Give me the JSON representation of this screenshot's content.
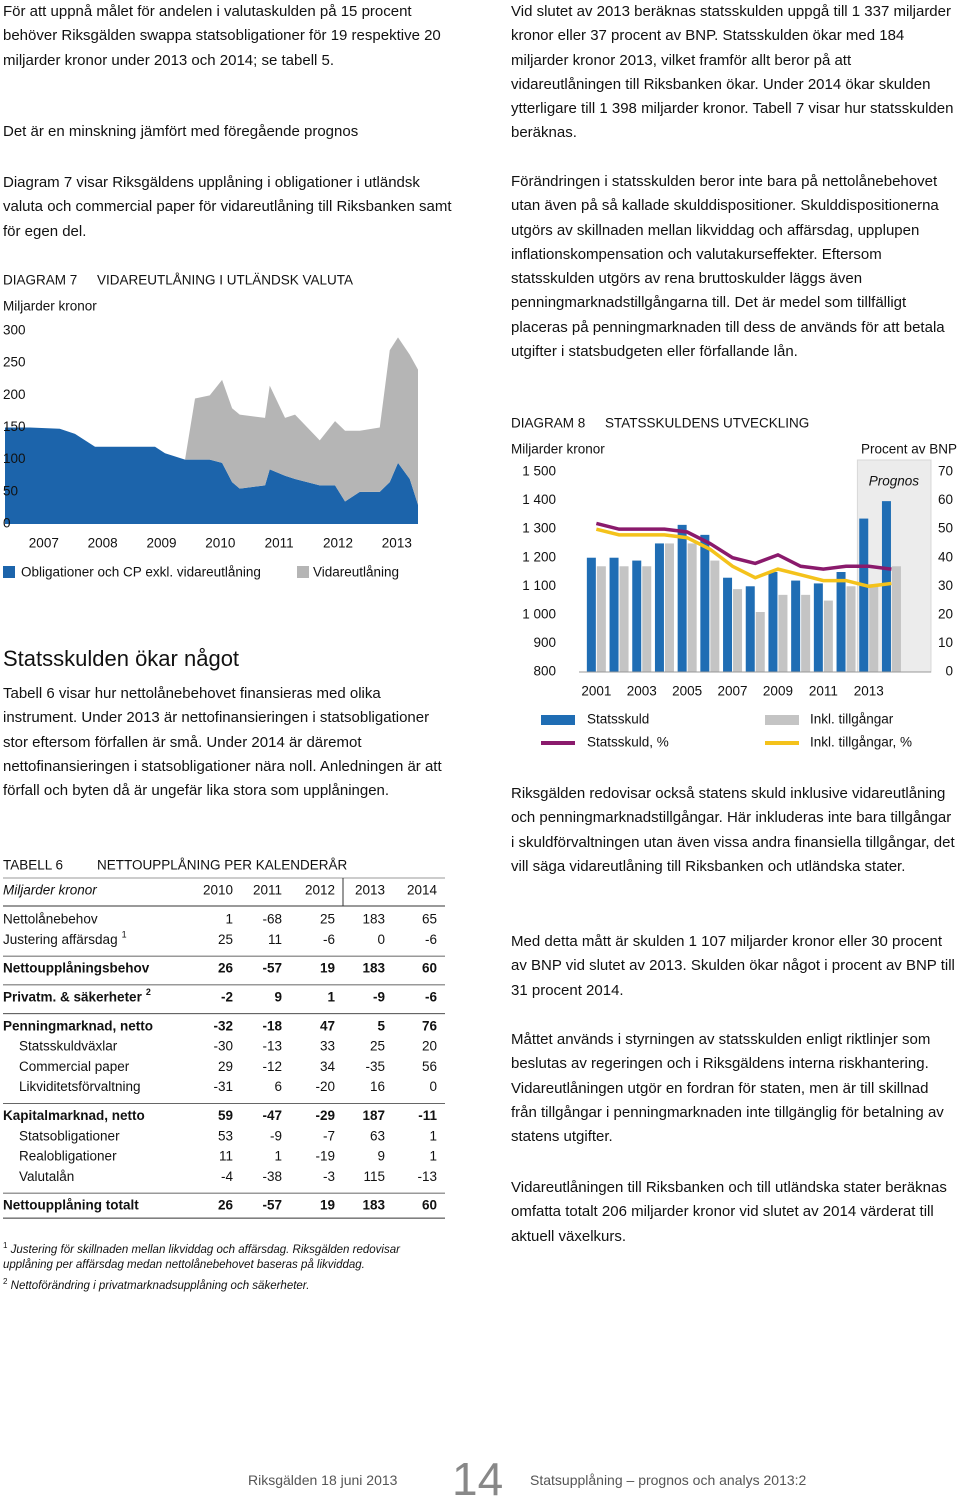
{
  "left_text": [
    "För att uppnå målet för andelen i valutaskulden på 15 procent behöver Riksgälden swappa statsobligationer för 19 respektive 20 miljarder kronor under 2013 och 2014; se tabell 5.",
    "Det är en minskning jämfört med föregående prognos",
    "Diagram 7 visar Riksgäldens upplåning i obligationer i utländsk valuta och commercial paper för vidareutlåning till Riksbanken samt för egen del."
  ],
  "chart_data": [
    {
      "type": "area",
      "label": "DIAGRAM 7",
      "title": "VIDAREUTLÅNING I UTLÄNDSK VALUTA",
      "y_label": "Miljarder kronor",
      "stacked": true,
      "x": [
        2006.34,
        2006.76,
        2007.27,
        2007.53,
        2007.87,
        2008.29,
        2008.89,
        2009.06,
        2009.4,
        2009.57,
        2009.82,
        2010.03,
        2010.2,
        2010.33,
        2010.76,
        2010.84,
        2011.1,
        2011.27,
        2011.69,
        2011.95,
        2012.12,
        2012.37,
        2012.71,
        2012.88,
        2013.02,
        2013.22,
        2013.36
      ],
      "series": [
        {
          "name": "Obligationer och CP exkl. vidareutlåning",
          "color": "#1c64ab",
          "values": [
            150,
            150,
            148,
            140,
            120,
            120,
            120,
            110,
            100,
            100,
            100,
            95,
            65,
            55,
            60,
            85,
            75,
            70,
            60,
            60,
            35,
            50,
            50,
            65,
            95,
            70,
            30
          ]
        },
        {
          "name": "Vidareutlåning",
          "color": "#b5b5b5",
          "values": [
            0,
            0,
            0,
            0,
            0,
            0,
            0,
            0,
            0,
            95,
            100,
            129,
            115,
            115,
            105,
            130,
            90,
            100,
            70,
            100,
            110,
            95,
            100,
            205,
            195,
            193,
            210
          ]
        }
      ],
      "xlim": [
        2006.34,
        2013.36
      ],
      "xticks": [
        2007,
        2008,
        2009,
        2010,
        2011,
        2012,
        2013
      ],
      "ylim": [
        0,
        300
      ],
      "yticks": [
        0,
        50,
        100,
        150,
        200,
        250,
        300
      ]
    },
    {
      "type": "bar",
      "label": "DIAGRAM 8",
      "title": "STATSSKULDENS UTVECKLING",
      "y_label": "Miljarder kronor",
      "y2_label": "Procent av BNP",
      "annotation": "Prognos",
      "shade_from": 2013,
      "categories": [
        "2001",
        null,
        "2003",
        null,
        "2005",
        null,
        "2007",
        null,
        "2009",
        null,
        "2011",
        null,
        "2013",
        null
      ],
      "series": [
        {
          "name": "Statsskuld",
          "kind": "bar",
          "color": "#1f6db4",
          "values": [
            1200,
            1200,
            1190,
            1250,
            1315,
            1280,
            1130,
            1100,
            1150,
            1120,
            1110,
            1150,
            1337,
            1398
          ]
        },
        {
          "name": "Inkl. tillgångar",
          "kind": "bar",
          "color": "#c4c4c4",
          "values": [
            1170,
            1170,
            1170,
            1250,
            1250,
            1190,
            1090,
            1010,
            1070,
            1070,
            1050,
            1100,
            1107,
            1170
          ]
        },
        {
          "name": "Statsskuld, %",
          "kind": "line",
          "axis": "y2",
          "color": "#8a1a6c",
          "values": [
            52,
            50,
            50,
            50,
            49,
            45,
            40,
            38,
            41,
            37,
            36,
            37,
            37,
            36
          ]
        },
        {
          "name": "Inkl. tillgångar, %",
          "kind": "line",
          "axis": "y2",
          "color": "#f4c21b",
          "values": [
            50,
            48,
            48,
            48,
            47,
            43,
            37,
            33,
            36,
            34,
            32,
            32,
            30,
            31
          ]
        }
      ],
      "ylim": [
        800,
        1500
      ],
      "yticks": [
        800,
        900,
        {
          "value": 1000,
          "label": "1 000"
        },
        {
          "value": 1100,
          "label": "1 100"
        },
        {
          "value": 1200,
          "label": "1 200"
        },
        {
          "value": 1300,
          "label": "1 300"
        },
        {
          "value": 1400,
          "label": "1 400"
        },
        {
          "value": 1500,
          "label": "1 500"
        }
      ],
      "y2lim": [
        0,
        70
      ],
      "y2ticks": [
        0,
        10,
        20,
        30,
        40,
        50,
        60,
        70
      ]
    }
  ],
  "section_heading": "Statsskulden ökar något",
  "section_text": "Tabell 6 visar hur nettolånebehovet finansieras med olika instrument. Under 2013 är nettofinansieringen i statsobligationer stor eftersom förfallen är små. Under 2014 är däremot nettofinansieringen i statsobligationer nära noll. Anledningen är att förfall och byten då är ungefär lika stora som upplåningen.",
  "table": {
    "label": "TABELL 6",
    "title": "NETTOUPPLÅNING PER KALENDERÅR",
    "unit": "Miljarder kronor",
    "columns": [
      2010,
      2011,
      2012,
      2013,
      2014
    ],
    "rows": [
      {
        "label": "Nettolånebehov",
        "values": [
          1,
          -68,
          25,
          183,
          65
        ]
      },
      {
        "label": "Justering affärsdag",
        "sup": "1",
        "values": [
          25,
          11,
          -6,
          0,
          -6
        ]
      },
      {
        "label": "Nettoupplåningsbehov",
        "bold": true,
        "values": [
          26,
          -57,
          19,
          183,
          60
        ]
      },
      {
        "label": "Privatm. & säkerheter",
        "sup": "2",
        "bold": true,
        "values": [
          -2,
          9,
          1,
          -9,
          -6
        ]
      },
      {
        "label": "Penningmarknad, netto",
        "bold": true,
        "values": [
          -32,
          -18,
          47,
          5,
          76
        ]
      },
      {
        "label": "Statsskuldväxlar",
        "indent": true,
        "values": [
          -30,
          -13,
          33,
          25,
          20
        ]
      },
      {
        "label": "Commercial paper",
        "indent": true,
        "values": [
          29,
          -12,
          34,
          -35,
          56
        ]
      },
      {
        "label": "Likviditetsförvaltning",
        "indent": true,
        "values": [
          -31,
          6,
          -20,
          16,
          0
        ]
      },
      {
        "label": "Kapitalmarknad, netto",
        "bold": true,
        "values": [
          59,
          -47,
          -29,
          187,
          -11
        ]
      },
      {
        "label": "Statsobligationer",
        "indent": true,
        "values": [
          53,
          -9,
          -7,
          63,
          1
        ]
      },
      {
        "label": "Realobligationer",
        "indent": true,
        "values": [
          11,
          1,
          -19,
          9,
          1
        ]
      },
      {
        "label": "Valutalån",
        "indent": true,
        "values": [
          -4,
          -38,
          -3,
          115,
          -13
        ]
      },
      {
        "label": "Nettoupplåning totalt",
        "bold": true,
        "values": [
          26,
          -57,
          19,
          183,
          60
        ]
      }
    ],
    "footnotes": [
      {
        "mark": "1",
        "text": "Justering för skillnaden mellan likviddag och affärsdag. Riksgälden redovisar upplåning per affärsdag medan nettolånebehovet baseras på likviddag."
      },
      {
        "mark": "2",
        "text": "Nettoförändring i privatmarknadsupplåning och säkerheter."
      }
    ]
  },
  "right_text": [
    "Vid slutet av 2013 beräknas statsskulden uppgå till 1 337 miljarder kronor eller 37 procent av BNP. Statsskulden ökar med 184 miljarder kronor 2013, vilket framför allt beror på att vidareutlåningen till Riksbanken ökar. Under 2014 ökar skulden ytterligare till 1 398 miljarder kronor. Tabell 7 visar hur statsskulden beräknas.",
    "Förändringen i statsskulden beror inte bara på nettolånebehovet utan även på så kallade skulddispositioner. Skulddispositionerna utgörs av skillnaden mellan likviddag och affärsdag, upplupen inflationskompensation och valutakurseffekter. Eftersom statsskulden utgörs av rena bruttoskulder läggs även penningmarknadstillgångarna till. Det är medel som tillfälligt placeras på penningmarknaden till dess de används för att betala utgifter i statsbudgeten eller förfallande lån.",
    "Riksgälden redovisar också statens skuld inklusive vidareutlåning och penningmarknadstillgångar. Här inkluderas inte bara tillgångar i skuldförvaltningen utan även vissa andra finansiella tillgångar, det vill säga vidareutlåning till Riksbanken och utländska stater.",
    "Med detta mått är skulden 1 107 miljarder kronor eller 30 procent av BNP vid slutet av 2013. Skulden ökar något i procent av BNP till 31 procent 2014.",
    "Måttet används i styrningen av statsskulden enligt riktlinjer som beslutas av regeringen och i Riksgäldens interna riskhantering. Vidareutlåningen utgör en fordran för staten, men är till skillnad från tillgångar i penningmarknaden inte tillgänglig för betalning av statens utgifter.",
    "Vidareutlåningen till Riksbanken och till utländska stater beräknas omfatta totalt 206 miljarder kronor vid slutet av 2014 värderat till aktuell växelkurs."
  ],
  "footer": {
    "left": "Riksgälden 18 juni 2013",
    "page": "14",
    "right": "Statsupplåning – prognos och analys 2013:2"
  }
}
